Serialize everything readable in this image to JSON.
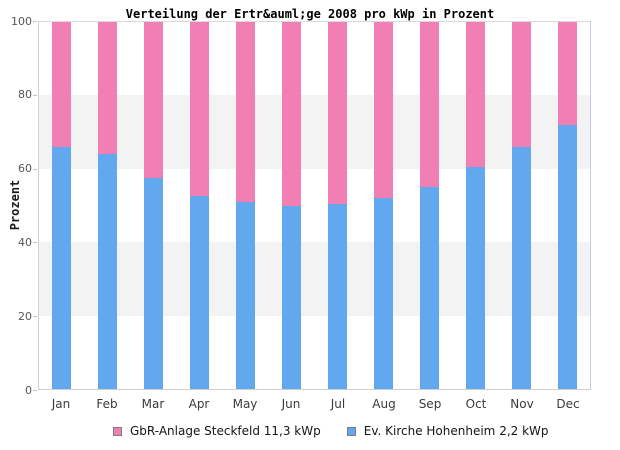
{
  "title": "Verteilung der Ertr&auml;ge 2008 pro kWp in Prozent",
  "y_axis": {
    "label": "Prozent",
    "ticks": [
      0,
      20,
      40,
      60,
      80,
      100
    ]
  },
  "legend": [
    {
      "label": "GbR-Anlage Steckfeld 11,3 kWp",
      "color": "#f17fb3"
    },
    {
      "label": "Ev. Kirche Hohenheim 2,2 kWp",
      "color": "#62a8ef"
    }
  ],
  "colors": {
    "pink_series": "#f17fb3",
    "blue_series": "#62a8ef",
    "band_gray": "#f3f3f3",
    "plot_border_right": "#c9c9e9"
  },
  "chart_data": {
    "type": "bar",
    "stacked": true,
    "title": "Verteilung der Ertr&auml;ge 2008 pro kWp in Prozent",
    "xlabel": "",
    "ylabel": "Prozent",
    "ylim": [
      0,
      100
    ],
    "yticks": [
      0,
      20,
      40,
      60,
      80,
      100
    ],
    "grid_bands": [
      [
        20,
        40
      ],
      [
        60,
        80
      ]
    ],
    "legend_position": "bottom",
    "categories": [
      "Jan",
      "Feb",
      "Mar",
      "Apr",
      "May",
      "Jun",
      "Jul",
      "Aug",
      "Sep",
      "Oct",
      "Nov",
      "Dec"
    ],
    "series": [
      {
        "name": "Ev. Kirche Hohenheim 2,2 kWp",
        "color": "#62a8ef",
        "stack_position": "bottom",
        "values": [
          66,
          64,
          57.5,
          52.5,
          51,
          50,
          50.5,
          52,
          55,
          60.5,
          66,
          72
        ]
      },
      {
        "name": "GbR-Anlage Steckfeld 11,3 kWp",
        "color": "#f17fb3",
        "stack_position": "top",
        "values": [
          34,
          36,
          42.5,
          47.5,
          49,
          50,
          49.5,
          48,
          45,
          39.5,
          34,
          28
        ]
      }
    ]
  }
}
